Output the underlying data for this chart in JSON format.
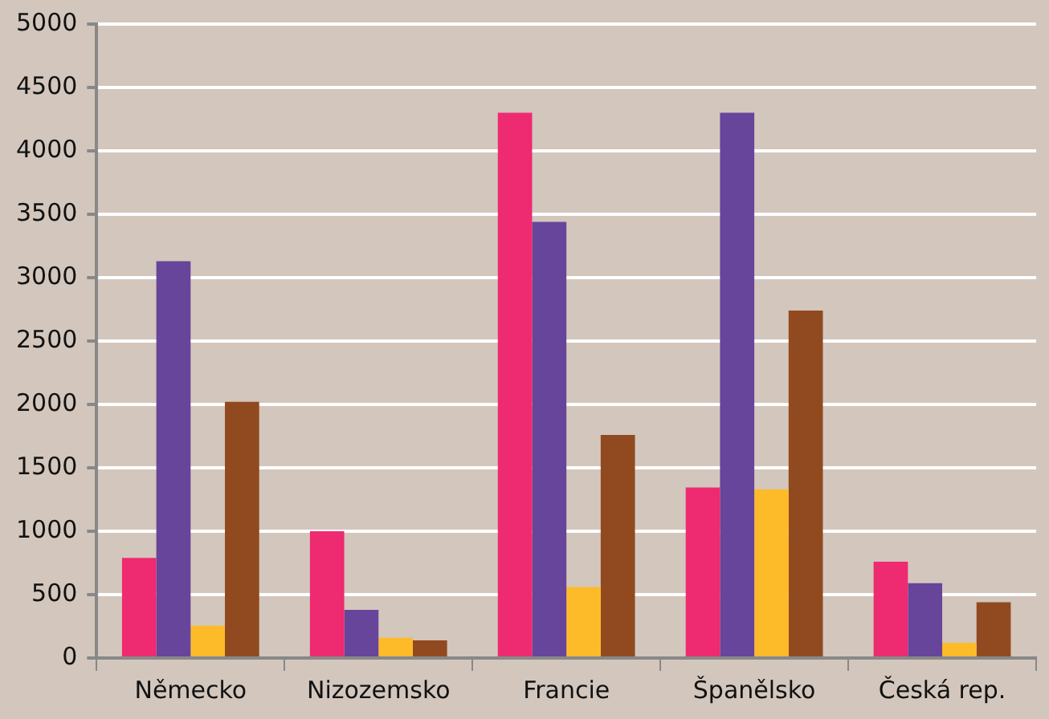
{
  "chart_data": {
    "type": "bar",
    "categories": [
      "Německo",
      "Nizozemsko",
      "Francie",
      "Španělsko",
      "Česká rep."
    ],
    "series": [
      {
        "color": "#ee2a70",
        "values": [
          790,
          1000,
          4300,
          1345,
          760
        ]
      },
      {
        "color": "#66459b",
        "values": [
          3130,
          380,
          3440,
          4300,
          590
        ]
      },
      {
        "color": "#fdbb2a",
        "values": [
          255,
          160,
          560,
          1330,
          120
        ]
      },
      {
        "color": "#914a1f",
        "values": [
          2020,
          140,
          1760,
          2740,
          440
        ]
      }
    ],
    "ylim": [
      0,
      5000
    ],
    "yticks": [
      0,
      500,
      1000,
      1500,
      2000,
      2500,
      3000,
      3500,
      4000,
      4500,
      5000
    ],
    "grid": "y",
    "legend": false
  }
}
